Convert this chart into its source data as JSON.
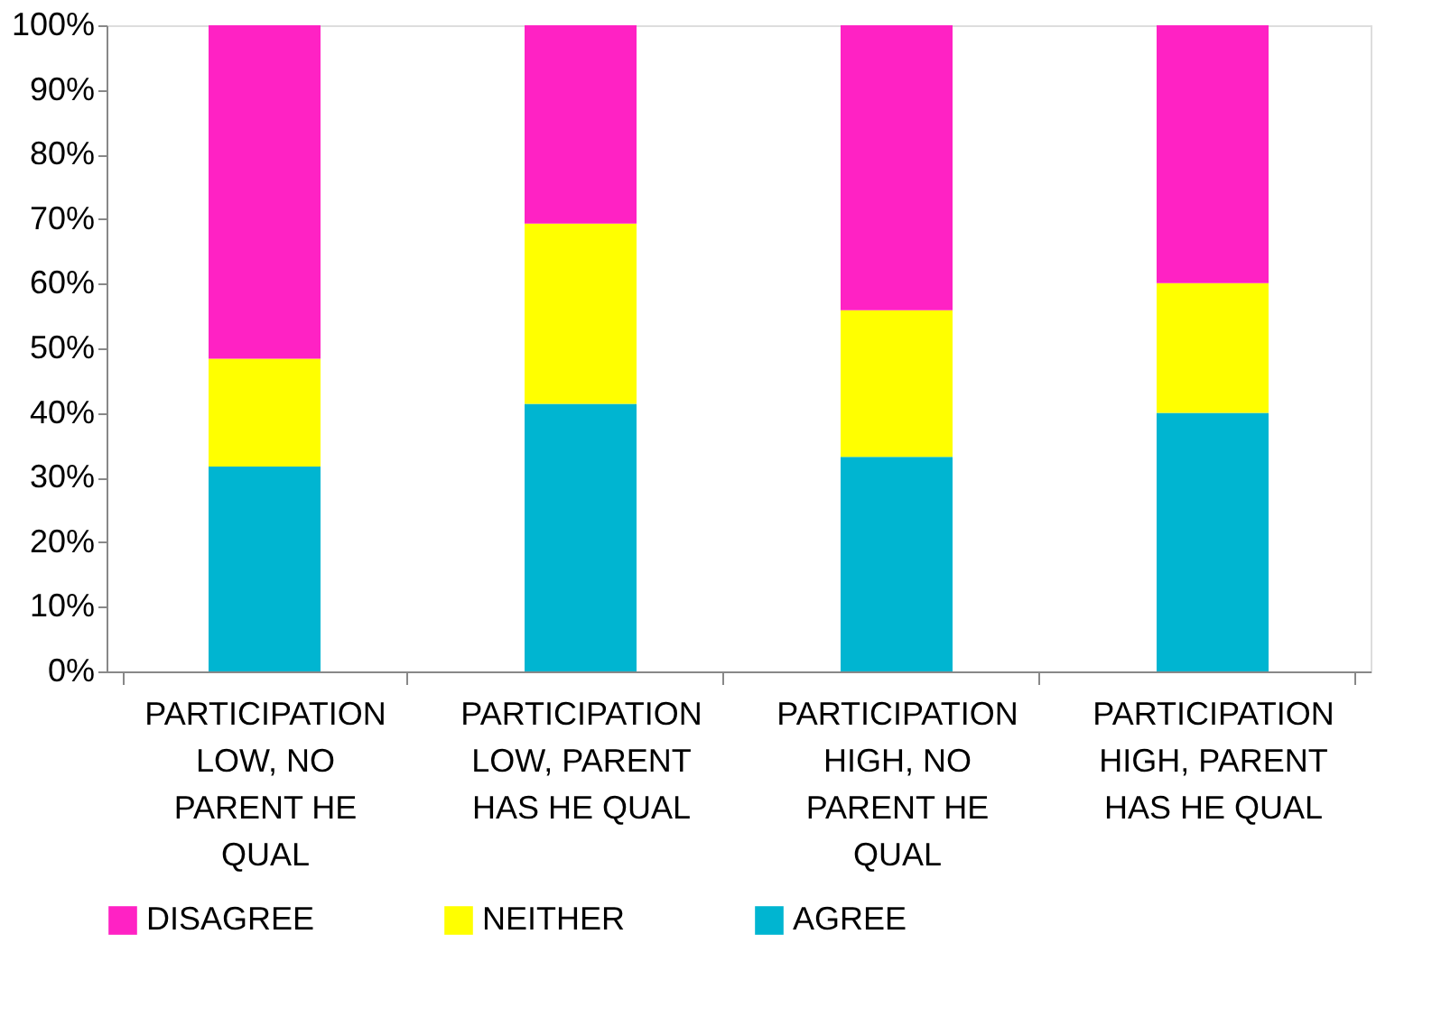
{
  "chart_data": {
    "type": "bar",
    "stacked": true,
    "categories": [
      "PARTICIPATION LOW, NO PARENT HE QUAL",
      "PARTICIPATION LOW, PARENT HAS HE QUAL",
      "PARTICIPATION HIGH, NO PARENT HE QUAL",
      "PARTICIPATION HIGH, PARENT HAS HE QUAL"
    ],
    "series": [
      {
        "name": "AGREE",
        "color": "#00b5d1",
        "values": [
          31.7,
          41.4,
          33.2,
          40.0
        ]
      },
      {
        "name": "NEITHER",
        "color": "#ffff00",
        "values": [
          16.7,
          27.9,
          22.7,
          20.1
        ]
      },
      {
        "name": "DISAGREE",
        "color": "#ff22c4",
        "values": [
          51.6,
          30.7,
          44.1,
          39.9
        ]
      }
    ],
    "ylim": [
      0,
      100
    ],
    "yticks": [
      {
        "value": 0,
        "label": "0%"
      },
      {
        "value": 10,
        "label": "10%"
      },
      {
        "value": 20,
        "label": "20%"
      },
      {
        "value": 30,
        "label": "30%"
      },
      {
        "value": 40,
        "label": "40%"
      },
      {
        "value": 50,
        "label": "50%"
      },
      {
        "value": 60,
        "label": "60%"
      },
      {
        "value": 70,
        "label": "70%"
      },
      {
        "value": 80,
        "label": "80%"
      },
      {
        "value": 90,
        "label": "90%"
      },
      {
        "value": 100,
        "label": "100%"
      }
    ],
    "grid": false,
    "legend": "bottom"
  }
}
